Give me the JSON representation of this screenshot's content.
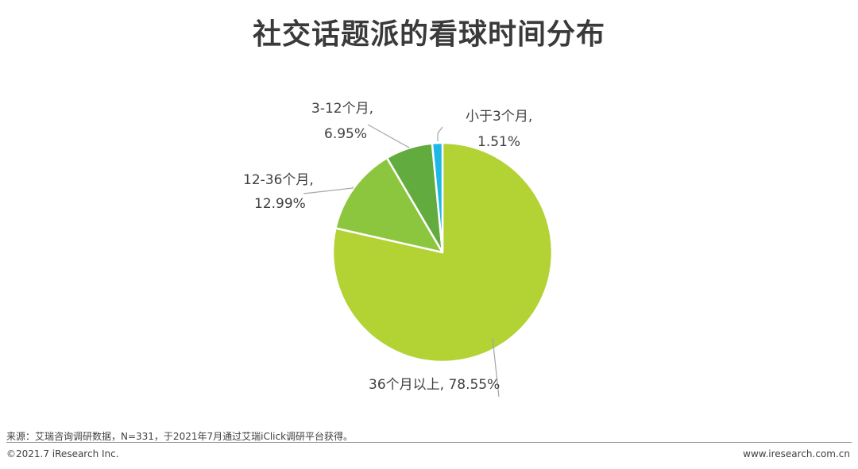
{
  "title": "社交话题派的看球时间分布",
  "chart_data": {
    "type": "pie",
    "start_angle": "12 o'clock",
    "direction": "clockwise",
    "slices": [
      {
        "name": "36个月以上",
        "value": 78.55,
        "label": "36个月以上, 78.55%",
        "color": "#b3d234"
      },
      {
        "name": "12-36个月",
        "value": 12.99,
        "label_line1": "12-36个月,",
        "label_line2": "12.99%",
        "color": "#8cc63f"
      },
      {
        "name": "3-12个月",
        "value": 6.95,
        "label_line1": "3-12个月,",
        "label_line2": "6.95%",
        "color": "#62ab3e"
      },
      {
        "name": "小于3个月",
        "value": 1.51,
        "label_line1": "小于3个月,",
        "label_line2": "1.51%",
        "color": "#1fb8e6"
      }
    ]
  },
  "footer": {
    "source": "来源：艾瑞咨询调研数据，N=331，于2021年7月通过艾瑞iClick调研平台获得。",
    "copyright": "©2021.7 iResearch Inc.",
    "website": "www.iresearch.com.cn"
  }
}
